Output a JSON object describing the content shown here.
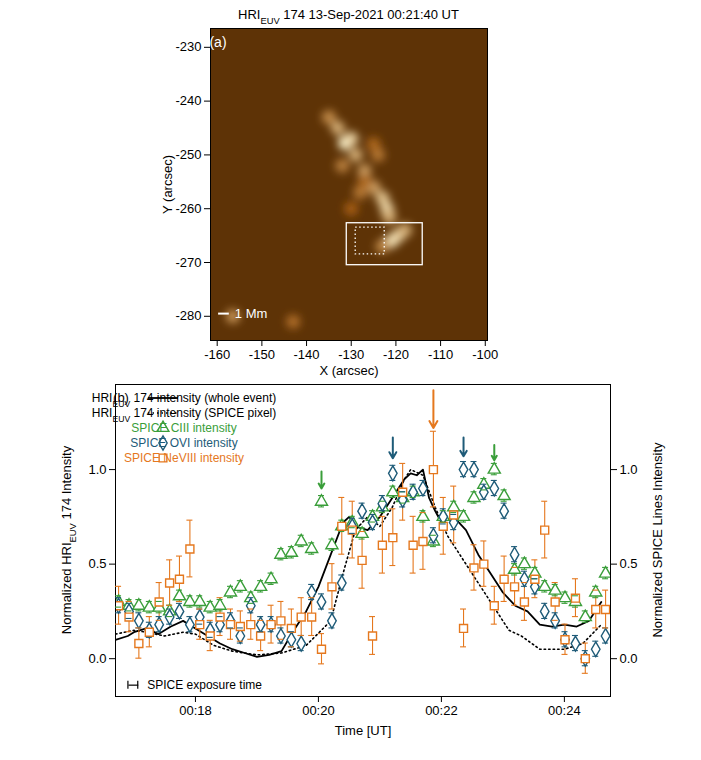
{
  "chart_data": [
    {
      "type": "image",
      "label": "(a)",
      "title": [
        "HRI",
        {
          "sub": "EUV"
        },
        " 174 13-Sep-2021 00:21:40 UT"
      ],
      "xlabel": "X (arcsec)",
      "ylabel": "Y (arcsec)",
      "xlim": [
        -161.5,
        -99.5
      ],
      "ylim": [
        -284.5,
        -226.5
      ],
      "xticks": [
        -160,
        -150,
        -140,
        -130,
        -120,
        -110,
        -100
      ],
      "yticks": [
        -280,
        -270,
        -260,
        -250,
        -240,
        -230
      ],
      "color": "#5e3306",
      "features": {
        "x": [
          -135,
          -133,
          -131.4,
          -130,
          -129,
          -127,
          -125,
          -123,
          -122,
          -121.5,
          -128,
          -132,
          -124,
          -121,
          -119.5,
          -118,
          -123,
          -156.5,
          -143,
          -127,
          -130,
          -125
        ],
        "y": [
          -243,
          -245,
          -247.8,
          -247,
          -250,
          -253,
          -256,
          -258,
          -260,
          -261.5,
          -257,
          -252,
          -250,
          -266,
          -265,
          -264,
          -267,
          -280,
          -281,
          -255,
          -260,
          -248
        ],
        "intensity": [
          0.4,
          0.6,
          1.0,
          0.8,
          0.6,
          0.5,
          0.5,
          0.7,
          0.8,
          0.6,
          0.3,
          0.35,
          0.3,
          0.9,
          0.8,
          0.6,
          0.4,
          0.45,
          0.25,
          0.2,
          0.15,
          0.2
        ]
      },
      "boxes": [
        {
          "x": [
            -131,
            -114
          ],
          "y": [
            -270.5,
            -262.7
          ],
          "color": "#ffffff",
          "line_style": "solid"
        },
        {
          "x": [
            -129,
            -122.5
          ],
          "y": [
            -268.5,
            -263.5
          ],
          "color": "#ffffff",
          "line_style": "dotted"
        }
      ],
      "scale_bar": {
        "x": [
          -159.8,
          -157.4
        ],
        "y": -279.5,
        "label": "1 Mm"
      }
    },
    {
      "type": "line",
      "label": "(b)",
      "xlabel": "Time [UT]",
      "ylabel": [
        "Normalized HRI",
        {
          "sub": "EUV"
        },
        " 174 Intensity"
      ],
      "y2label": "Normalized SPICE Lines Intensity",
      "xlim": [
        16.7,
        24.75
      ],
      "xticks": [
        {
          "value": 18,
          "label": "00:18"
        },
        {
          "value": 20,
          "label": "00:20"
        },
        {
          "value": 22,
          "label": "00:22"
        },
        {
          "value": 24,
          "label": "00:24"
        }
      ],
      "ylim": [
        -0.2,
        1.45
      ],
      "yticks": [
        {
          "value": 0,
          "label": "0.0"
        },
        0.5,
        {
          "value": 1,
          "label": "1.0"
        }
      ],
      "y2lim": [
        -0.2,
        1.45
      ],
      "y2ticks": [
        {
          "value": 0,
          "label": "0.0"
        },
        0.5,
        {
          "value": 1,
          "label": "1.0"
        }
      ],
      "legend": "top-left",
      "series": [
        {
          "name": [
            "HRI",
            {
              "sub": "EUV"
            },
            " 174 intensity (whole event)"
          ],
          "color": "#000000",
          "line_style": "solid",
          "x": [
            16.7,
            16.9,
            17.0,
            17.2,
            17.4,
            17.6,
            17.8,
            17.9,
            18.0,
            18.2,
            18.4,
            18.6,
            18.8,
            19.0,
            19.2,
            19.4,
            19.6,
            19.8,
            20.0,
            20.2,
            20.4,
            20.5,
            20.6,
            20.8,
            21.0,
            21.2,
            21.4,
            21.5,
            21.6,
            21.7,
            21.8,
            21.9,
            22.0,
            22.2,
            22.4,
            22.6,
            22.8,
            23.0,
            23.2,
            23.4,
            23.6,
            23.8,
            24.0,
            24.2,
            24.4,
            24.6
          ],
          "values": [
            0.1,
            0.12,
            0.14,
            0.16,
            0.13,
            0.17,
            0.2,
            0.18,
            0.16,
            0.12,
            0.08,
            0.05,
            0.03,
            0.01,
            0.02,
            0.04,
            0.15,
            0.25,
            0.38,
            0.55,
            0.72,
            0.75,
            0.7,
            0.68,
            0.75,
            0.85,
            0.95,
            0.98,
            0.97,
            1.0,
            0.85,
            0.78,
            0.72,
            0.75,
            0.68,
            0.55,
            0.45,
            0.35,
            0.28,
            0.25,
            0.18,
            0.17,
            0.18,
            0.17,
            0.2,
            0.3
          ]
        },
        {
          "name": [
            "HRI",
            {
              "sub": "EUV"
            },
            " 174 intensity (SPICE pixel)"
          ],
          "color": "#000000",
          "line_style": "dotted",
          "x": [
            16.7,
            17.0,
            17.2,
            17.5,
            17.8,
            18.0,
            18.3,
            18.6,
            19.0,
            19.4,
            19.8,
            20.2,
            20.4,
            20.6,
            20.8,
            21.0,
            21.2,
            21.4,
            21.5,
            21.7,
            21.9,
            22.1,
            22.3,
            22.5,
            22.7,
            22.9,
            23.1,
            23.3,
            23.6,
            24.0,
            24.3,
            24.6
          ],
          "values": [
            0.13,
            0.15,
            0.14,
            0.12,
            0.14,
            0.13,
            0.07,
            0.04,
            0.02,
            0.03,
            0.07,
            0.2,
            0.45,
            0.68,
            0.75,
            0.7,
            0.8,
            0.95,
            1.0,
            0.97,
            0.8,
            0.65,
            0.55,
            0.45,
            0.35,
            0.25,
            0.15,
            0.12,
            0.05,
            0.05,
            0.08,
            0.18
          ]
        },
        {
          "name": "SPICE CIII intensity",
          "color": "#3a9e3a",
          "marker": "triangle",
          "axis": "y2",
          "x": [
            16.75,
            16.92,
            17.08,
            17.25,
            17.41,
            17.58,
            17.74,
            17.91,
            18.07,
            18.24,
            18.4,
            18.57,
            18.73,
            18.9,
            19.06,
            19.23,
            19.39,
            19.56,
            19.72,
            19.89,
            20.05,
            20.22,
            20.38,
            20.55,
            20.71,
            20.88,
            21.04,
            21.21,
            21.37,
            21.54,
            21.7,
            21.87,
            22.03,
            22.2,
            22.36,
            22.53,
            22.69,
            22.86,
            23.02,
            23.19,
            23.35,
            23.52,
            23.68,
            23.85,
            24.01,
            24.18,
            24.34,
            24.51,
            24.67
          ],
          "values": [
            0.3,
            0.28,
            0.28,
            0.27,
            0.27,
            0.25,
            0.33,
            0.3,
            0.3,
            0.27,
            0.28,
            0.35,
            0.38,
            0.32,
            0.38,
            0.42,
            0.55,
            0.56,
            0.62,
            0.58,
            0.83,
            0.6,
            0.7,
            0.72,
            0.66,
            0.75,
            0.8,
            0.88,
            0.85,
            0.88,
            0.75,
            0.62,
            0.75,
            0.8,
            0.75,
            0.85,
            0.92,
            1.0,
            0.86,
            0.47,
            0.5,
            0.45,
            0.38,
            0.36,
            0.32,
            0.3,
            0.22,
            0.35,
            0.45
          ],
          "errors": [
            0.03,
            0.03,
            0.03,
            0.03,
            0.03,
            0.03,
            0.03,
            0.03,
            0.03,
            0.03,
            0.03,
            0.03,
            0.03,
            0.03,
            0.03,
            0.03,
            0.03,
            0.03,
            0.03,
            0.03,
            0.03,
            0.03,
            0.03,
            0.03,
            0.03,
            0.03,
            0.03,
            0.03,
            0.03,
            0.03,
            0.03,
            0.03,
            0.03,
            0.03,
            0.03,
            0.03,
            0.03,
            0.03,
            0.03,
            0.03,
            0.03,
            0.03,
            0.03,
            0.03,
            0.03,
            0.03,
            0.03,
            0.03,
            0.03
          ]
        },
        {
          "name": "SPICE OVI intensity",
          "color": "#1e5b78",
          "marker": "diamond",
          "axis": "y2",
          "x": [
            16.75,
            16.92,
            17.08,
            17.25,
            17.41,
            17.58,
            17.74,
            17.91,
            18.07,
            18.24,
            18.4,
            18.57,
            18.73,
            18.9,
            19.06,
            19.23,
            19.39,
            19.56,
            19.72,
            19.89,
            20.05,
            20.22,
            20.38,
            20.55,
            20.71,
            20.88,
            21.04,
            21.21,
            21.37,
            21.54,
            21.7,
            21.87,
            22.03,
            22.2,
            22.36,
            22.53,
            22.69,
            22.86,
            23.02,
            23.19,
            23.35,
            23.52,
            23.68,
            23.85,
            24.01,
            24.18,
            24.34,
            24.51,
            24.67
          ],
          "values": [
            0.28,
            0.25,
            0.2,
            0.15,
            0.18,
            0.22,
            0.25,
            0.18,
            0.22,
            0.15,
            0.18,
            0.2,
            0.12,
            0.28,
            0.18,
            0.18,
            0.12,
            0.1,
            0.08,
            0.35,
            0.3,
            0.2,
            0.4,
            0.7,
            0.78,
            0.72,
            0.82,
            0.98,
            0.84,
            0.88,
            0.9,
            0.65,
            0.75,
            0.72,
            1.0,
            1.0,
            0.88,
            0.9,
            0.78,
            0.55,
            0.42,
            0.38,
            0.25,
            0.2,
            0.1,
            0.08,
            0.0,
            0.05,
            0.12
          ],
          "errors": [
            0.04,
            0.04,
            0.04,
            0.04,
            0.04,
            0.04,
            0.04,
            0.04,
            0.04,
            0.04,
            0.04,
            0.04,
            0.04,
            0.04,
            0.04,
            0.04,
            0.04,
            0.04,
            0.04,
            0.04,
            0.04,
            0.04,
            0.04,
            0.04,
            0.04,
            0.04,
            0.04,
            0.04,
            0.04,
            0.04,
            0.04,
            0.04,
            0.04,
            0.04,
            0.04,
            0.04,
            0.04,
            0.04,
            0.04,
            0.04,
            0.04,
            0.04,
            0.04,
            0.04,
            0.04,
            0.04,
            0.04,
            0.04,
            0.04
          ]
        },
        {
          "name": "SPICE NeVIII intensity",
          "color": "#e5781e",
          "marker": "square",
          "axis": "y2",
          "x": [
            16.75,
            16.92,
            17.08,
            17.25,
            17.41,
            17.58,
            17.74,
            17.91,
            18.07,
            18.24,
            18.4,
            18.57,
            18.73,
            18.9,
            19.06,
            19.23,
            19.39,
            19.56,
            19.72,
            19.89,
            20.05,
            20.22,
            20.38,
            20.55,
            20.71,
            20.88,
            21.04,
            21.21,
            21.37,
            21.54,
            21.7,
            21.87,
            22.03,
            22.2,
            22.36,
            22.53,
            22.69,
            22.86,
            23.02,
            23.19,
            23.35,
            23.52,
            23.68,
            23.85,
            24.01,
            24.18,
            24.34,
            24.51,
            24.67
          ],
          "values": [
            0.28,
            0.22,
            0.08,
            0.14,
            0.3,
            0.4,
            0.42,
            0.58,
            0.18,
            0.12,
            0.22,
            0.18,
            0.17,
            0.18,
            0.12,
            0.18,
            0.2,
            0.16,
            0.22,
            0.22,
            0.05,
            0.38,
            0.7,
            0.68,
            0.52,
            0.12,
            0.6,
            0.64,
            0.88,
            0.6,
            0.62,
            1.0,
            0.7,
            0.76,
            0.16,
            0.48,
            0.5,
            0.28,
            0.42,
            0.38,
            0.3,
            0.42,
            0.68,
            0.3,
            0.1,
            0.32,
            0.0,
            0.26,
            0.26
          ],
          "errors": [
            0.1,
            0.08,
            0.08,
            0.08,
            0.1,
            0.12,
            0.12,
            0.15,
            0.08,
            0.08,
            0.1,
            0.08,
            0.08,
            0.08,
            0.08,
            0.1,
            0.1,
            0.1,
            0.1,
            0.1,
            0.08,
            0.12,
            0.15,
            0.15,
            0.15,
            0.1,
            0.15,
            0.15,
            0.15,
            0.15,
            0.15,
            0.2,
            0.15,
            0.15,
            0.1,
            0.12,
            0.12,
            0.1,
            0.12,
            0.1,
            0.1,
            0.1,
            0.15,
            0.1,
            0.08,
            0.1,
            0.08,
            0.1,
            0.1
          ]
        }
      ],
      "arrows": [
        {
          "x": 20.05,
          "y1": 0.99,
          "y2": 0.9,
          "color": "#3a9e3a"
        },
        {
          "x": 21.21,
          "y1": 1.17,
          "y2": 1.06,
          "color": "#1e5b78"
        },
        {
          "x": 21.87,
          "y1": 1.42,
          "y2": 1.22,
          "color": "#e5781e"
        },
        {
          "x": 22.36,
          "y1": 1.17,
          "y2": 1.07,
          "color": "#1e5b78"
        },
        {
          "x": 22.86,
          "y1": 1.13,
          "y2": 1.05,
          "color": "#3a9e3a"
        }
      ],
      "exposure_bar": {
        "x": [
          16.91,
          17.07
        ],
        "y": -0.14,
        "label": "SPICE exposure time"
      }
    }
  ]
}
